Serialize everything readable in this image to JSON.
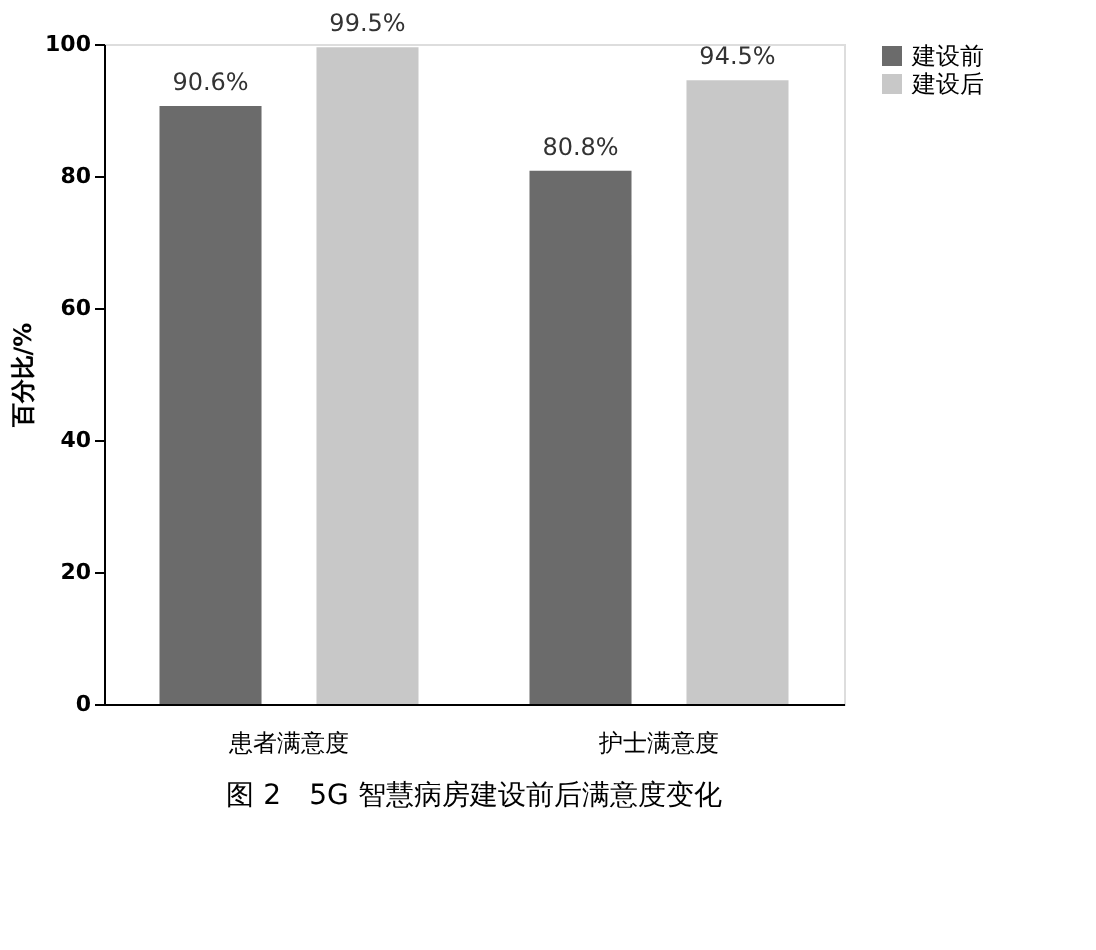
{
  "chart_data": {
    "type": "bar",
    "title": "图 2　5G 智慧病房建设前后满意度变化",
    "ylabel": "百分比/%",
    "categories": [
      "患者满意度",
      "护士满意度"
    ],
    "series": [
      {
        "name": "建设前",
        "color": "#6b6b6b",
        "values": [
          90.6,
          80.8
        ],
        "value_labels": [
          "90.6%",
          "80.8%"
        ]
      },
      {
        "name": "建设后",
        "color": "#c8c8c8",
        "values": [
          99.5,
          94.5
        ],
        "value_labels": [
          "99.5%",
          "94.5%"
        ]
      }
    ],
    "ylim": [
      0,
      100
    ],
    "yticks": [
      0,
      20,
      40,
      60,
      80,
      100
    ],
    "grid": false,
    "legend": "top right"
  }
}
